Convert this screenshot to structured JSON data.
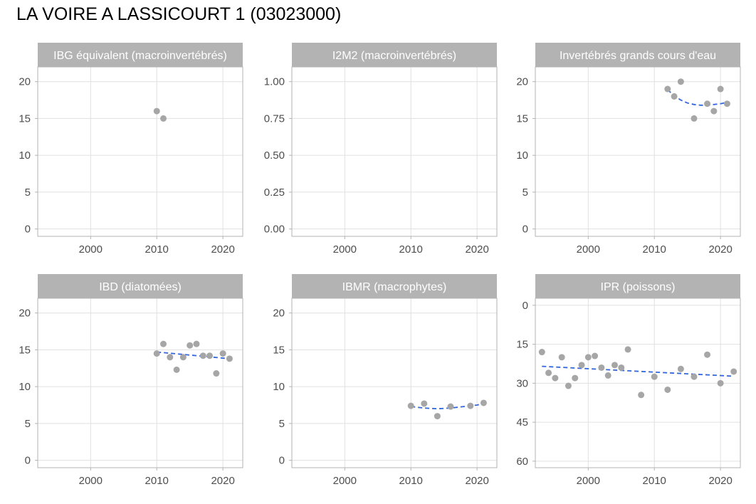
{
  "title": "LA VOIRE A LASSICOURT 1 (03023000)",
  "chart_data": [
    {
      "type": "scatter",
      "title": "IBG équivalent (macroinvertébrés)",
      "xlim": [
        1992,
        2023
      ],
      "ylim": [
        -1,
        22
      ],
      "x_ticks": [
        2000,
        2010,
        2020
      ],
      "x_tick_labels": [
        "2000",
        "2010",
        "2020"
      ],
      "y_ticks": [
        0,
        5,
        10,
        15,
        20
      ],
      "y_tick_labels": [
        "0",
        "5",
        "10",
        "15",
        "20"
      ],
      "y_reversed": false,
      "points": [
        [
          2010,
          16
        ],
        [
          2011,
          15
        ]
      ],
      "trend": [],
      "grid": true
    },
    {
      "type": "scatter",
      "title": "I2M2 (macroinvertébrés)",
      "xlim": [
        1992,
        2023
      ],
      "ylim": [
        -0.05,
        1.1
      ],
      "x_ticks": [
        2000,
        2010,
        2020
      ],
      "x_tick_labels": [
        "2000",
        "2010",
        "2020"
      ],
      "y_ticks": [
        0,
        0.25,
        0.5,
        0.75,
        1.0
      ],
      "y_tick_labels": [
        "0.00",
        "0.25",
        "0.50",
        "0.75",
        "1.00"
      ],
      "y_reversed": false,
      "points": [],
      "trend": [],
      "grid": true
    },
    {
      "type": "scatter",
      "title": "Invertébrés grands cours d'eau",
      "xlim": [
        1992,
        2023
      ],
      "ylim": [
        -1,
        22
      ],
      "x_ticks": [
        2000,
        2010,
        2020
      ],
      "x_tick_labels": [
        "2000",
        "2010",
        "2020"
      ],
      "y_ticks": [
        0,
        5,
        10,
        15,
        20
      ],
      "y_tick_labels": [
        "0",
        "5",
        "10",
        "15",
        "20"
      ],
      "y_reversed": false,
      "points": [
        [
          2012,
          19
        ],
        [
          2013,
          18
        ],
        [
          2014,
          20
        ],
        [
          2016,
          15
        ],
        [
          2018,
          17
        ],
        [
          2019,
          16
        ],
        [
          2020,
          19
        ],
        [
          2021,
          17
        ]
      ],
      "trend": [
        [
          2012,
          18.9
        ],
        [
          2013,
          18.1
        ],
        [
          2014,
          17.5
        ],
        [
          2015,
          17.1
        ],
        [
          2016,
          16.9
        ],
        [
          2017,
          16.8
        ],
        [
          2018,
          16.8
        ],
        [
          2019,
          16.9
        ],
        [
          2020,
          17.0
        ],
        [
          2021,
          17.2
        ]
      ],
      "grid": true
    },
    {
      "type": "scatter",
      "title": "IBD (diatomées)",
      "xlim": [
        1992,
        2023
      ],
      "ylim": [
        -1,
        22
      ],
      "x_ticks": [
        2000,
        2010,
        2020
      ],
      "x_tick_labels": [
        "2000",
        "2010",
        "2020"
      ],
      "y_ticks": [
        0,
        5,
        10,
        15,
        20
      ],
      "y_tick_labels": [
        "0",
        "5",
        "10",
        "15",
        "20"
      ],
      "y_reversed": false,
      "points": [
        [
          2010,
          14.5
        ],
        [
          2011,
          15.8
        ],
        [
          2012,
          14.0
        ],
        [
          2013,
          12.3
        ],
        [
          2014,
          14.0
        ],
        [
          2015,
          15.6
        ],
        [
          2016,
          15.8
        ],
        [
          2017,
          14.2
        ],
        [
          2018,
          14.2
        ],
        [
          2019,
          11.8
        ],
        [
          2020,
          14.5
        ],
        [
          2021,
          13.8
        ]
      ],
      "trend": [
        [
          2010,
          14.7
        ],
        [
          2021,
          13.8
        ]
      ],
      "grid": true
    },
    {
      "type": "scatter",
      "title": "IBMR (macrophytes)",
      "xlim": [
        1992,
        2023
      ],
      "ylim": [
        -1,
        22
      ],
      "x_ticks": [
        2000,
        2010,
        2020
      ],
      "x_tick_labels": [
        "2000",
        "2010",
        "2020"
      ],
      "y_ticks": [
        0,
        5,
        10,
        15,
        20
      ],
      "y_tick_labels": [
        "0",
        "5",
        "10",
        "15",
        "20"
      ],
      "y_reversed": false,
      "points": [
        [
          2010,
          7.4
        ],
        [
          2012,
          7.7
        ],
        [
          2014,
          6.0
        ],
        [
          2016,
          7.3
        ],
        [
          2019,
          7.4
        ],
        [
          2021,
          7.8
        ]
      ],
      "trend": [
        [
          2010,
          7.3
        ],
        [
          2012,
          7.1
        ],
        [
          2014,
          7.0
        ],
        [
          2016,
          7.1
        ],
        [
          2018,
          7.3
        ],
        [
          2020,
          7.5
        ],
        [
          2021,
          7.7
        ]
      ],
      "grid": true
    },
    {
      "type": "scatter",
      "title": "IPR (poissons)",
      "xlim": [
        1992,
        2023
      ],
      "ylim": [
        -2.7,
        62.5
      ],
      "x_ticks": [
        2000,
        2010,
        2020
      ],
      "x_tick_labels": [
        "2000",
        "2010",
        "2020"
      ],
      "y_ticks": [
        0,
        15,
        30,
        45,
        60
      ],
      "y_tick_labels": [
        "0",
        "15",
        "30",
        "45",
        "60"
      ],
      "y_reversed": true,
      "points": [
        [
          1993,
          18
        ],
        [
          1994,
          26
        ],
        [
          1995,
          28
        ],
        [
          1996,
          20
        ],
        [
          1997,
          31
        ],
        [
          1998,
          28
        ],
        [
          1999,
          23
        ],
        [
          2000,
          20
        ],
        [
          2001,
          19.5
        ],
        [
          2002,
          24
        ],
        [
          2003,
          27
        ],
        [
          2004,
          23
        ],
        [
          2005,
          24
        ],
        [
          2006,
          17
        ],
        [
          2008,
          34.5
        ],
        [
          2010,
          27.5
        ],
        [
          2012,
          32.5
        ],
        [
          2014,
          24.5
        ],
        [
          2016,
          27.5
        ],
        [
          2018,
          19
        ],
        [
          2020,
          30
        ],
        [
          2022,
          25.5
        ]
      ],
      "trend": [
        [
          1993,
          23.5
        ],
        [
          2022,
          27.3
        ]
      ],
      "grid": true
    }
  ],
  "colors": {
    "point": "#a6a6a6",
    "trend": "#3366dd",
    "strip": "#b3b3b3",
    "grid": "#e0e0e0",
    "panel_border": "#b3b3b3",
    "tick_text": "#4d4d4d"
  }
}
